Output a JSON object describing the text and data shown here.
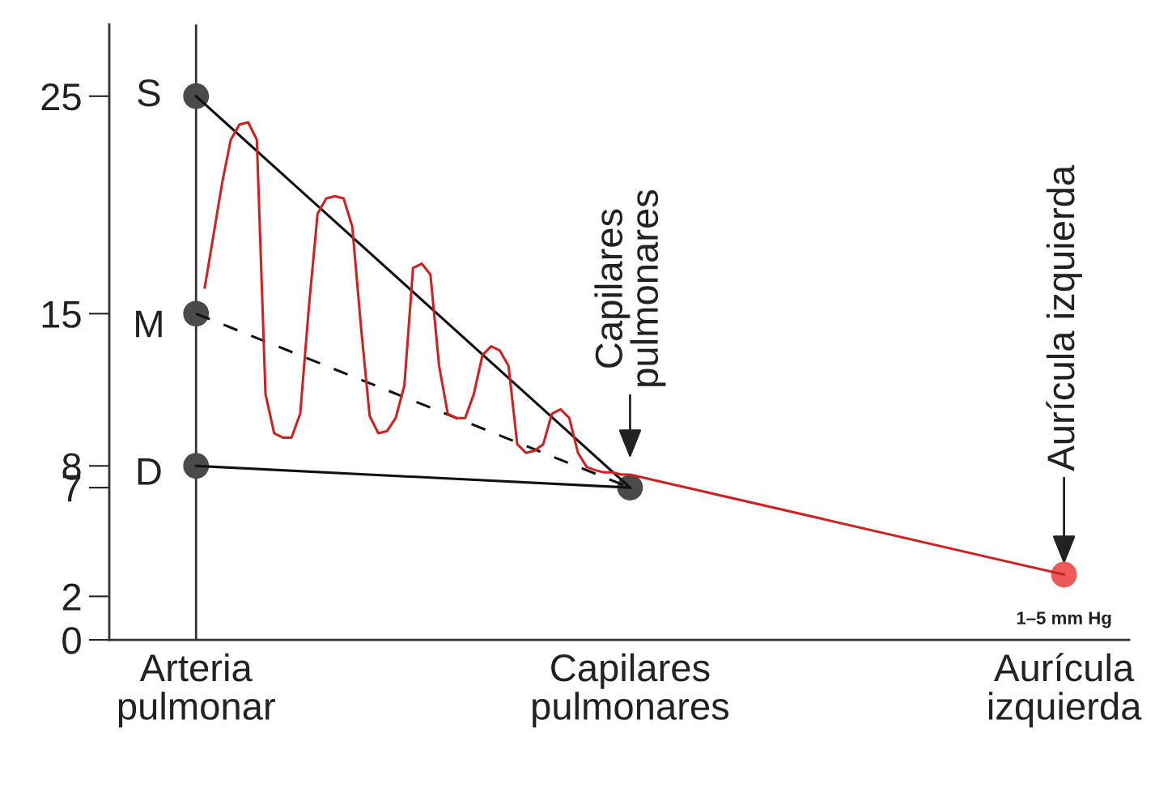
{
  "chart_data": {
    "type": "line",
    "categories": [
      "Arteria\npulmonar",
      null,
      null,
      null,
      null,
      null,
      null,
      null,
      null,
      null,
      null,
      null,
      null,
      null,
      null,
      null,
      null,
      null,
      null,
      null,
      null,
      null,
      null,
      null,
      null,
      null,
      null,
      null,
      null,
      null,
      null,
      null,
      null,
      null,
      null,
      null,
      null,
      null,
      null,
      null,
      null,
      null,
      null,
      null,
      null,
      null,
      null,
      null,
      null,
      null,
      "Capilares\npulmonares",
      null,
      null,
      null,
      null,
      null,
      null,
      null,
      null,
      null,
      null,
      null,
      null,
      null,
      null,
      null,
      null,
      null,
      null,
      null,
      null,
      null,
      null,
      null,
      null,
      null,
      null,
      null,
      null,
      null,
      null,
      null,
      null,
      null,
      null,
      null,
      null,
      null,
      null,
      null,
      null,
      null,
      null,
      null,
      null,
      null,
      null,
      null,
      null,
      null,
      "Aurícula\nizquierda"
    ],
    "ylim": [
      0,
      28.3
    ],
    "yticks": [
      0,
      2,
      7,
      8,
      15,
      25
    ],
    "grid": false,
    "legend": false,
    "series": [
      {
        "values": [
          25,
          null,
          null,
          null,
          null,
          null,
          null,
          null,
          null,
          null,
          null,
          null,
          null,
          null,
          null,
          null,
          null,
          null,
          null,
          null,
          null,
          null,
          null,
          null,
          null,
          null,
          null,
          null,
          null,
          null,
          null,
          null,
          null,
          null,
          null,
          null,
          null,
          null,
          null,
          null,
          null,
          null,
          null,
          null,
          null,
          null,
          null,
          null,
          null,
          null,
          7,
          null,
          null,
          null,
          null,
          null,
          null,
          null,
          null,
          null,
          null,
          null,
          null,
          null,
          null,
          null,
          null,
          null,
          null,
          null,
          null,
          null,
          null,
          null,
          null,
          null,
          null,
          null,
          null,
          null,
          null,
          null,
          null,
          null,
          null,
          null,
          null,
          null,
          null,
          null,
          null,
          null,
          null,
          null,
          null,
          null,
          null,
          null,
          null,
          null,
          null
        ],
        "color": "#111111",
        "marker": "none",
        "line_style": "solid"
      },
      {
        "values": [
          15,
          null,
          null,
          null,
          null,
          null,
          null,
          null,
          null,
          null,
          null,
          null,
          null,
          null,
          null,
          null,
          null,
          null,
          null,
          null,
          null,
          null,
          null,
          null,
          null,
          null,
          null,
          null,
          null,
          null,
          null,
          null,
          null,
          null,
          null,
          null,
          null,
          null,
          null,
          null,
          null,
          null,
          null,
          null,
          null,
          null,
          null,
          null,
          null,
          null,
          7,
          null,
          null,
          null,
          null,
          null,
          null,
          null,
          null,
          null,
          null,
          null,
          null,
          null,
          null,
          null,
          null,
          null,
          null,
          null,
          null,
          null,
          null,
          null,
          null,
          null,
          null,
          null,
          null,
          null,
          null,
          null,
          null,
          null,
          null,
          null,
          null,
          null,
          null,
          null,
          null,
          null,
          null,
          null,
          null,
          null,
          null,
          null,
          null,
          null,
          null
        ],
        "color": "#111111",
        "marker": "none",
        "line_style": "dashed"
      },
      {
        "values": [
          8,
          null,
          null,
          null,
          null,
          null,
          null,
          null,
          null,
          null,
          null,
          null,
          null,
          null,
          null,
          null,
          null,
          null,
          null,
          null,
          null,
          null,
          null,
          null,
          null,
          null,
          null,
          null,
          null,
          null,
          null,
          null,
          null,
          null,
          null,
          null,
          null,
          null,
          null,
          null,
          null,
          null,
          null,
          null,
          null,
          null,
          null,
          null,
          null,
          null,
          7,
          null,
          null,
          null,
          null,
          null,
          null,
          null,
          null,
          null,
          null,
          null,
          null,
          null,
          null,
          null,
          null,
          null,
          null,
          null,
          null,
          null,
          null,
          null,
          null,
          null,
          null,
          null,
          null,
          null,
          null,
          null,
          null,
          null,
          null,
          null,
          null,
          null,
          null,
          null,
          null,
          null,
          null,
          null,
          null,
          null,
          null,
          null,
          null,
          null,
          null
        ],
        "color": "#111111",
        "marker": "none",
        "line_style": "solid"
      },
      {
        "values": [
          null,
          16.2,
          18.6,
          21.0,
          23.0,
          23.7,
          23.8,
          23.0,
          11.3,
          9.5,
          9.3,
          9.3,
          10.4,
          15.3,
          19.6,
          20.3,
          20.4,
          20.3,
          19.0,
          14.4,
          10.3,
          9.5,
          9.6,
          10.2,
          11.7,
          17.1,
          17.3,
          16.8,
          12.6,
          10.4,
          10.2,
          10.2,
          11.3,
          13.1,
          13.5,
          13.3,
          12.6,
          9.0,
          8.6,
          8.7,
          9.0,
          10.4,
          10.6,
          10.2,
          8.6,
          7.95,
          7.8,
          7.7,
          7.7,
          7.6,
          7.6,
          null,
          null,
          null,
          null,
          null,
          null,
          null,
          null,
          null,
          null,
          null,
          null,
          null,
          null,
          null,
          null,
          null,
          null,
          null,
          null,
          null,
          null,
          null,
          null,
          null,
          null,
          null,
          null,
          null,
          null,
          null,
          null,
          null,
          null,
          null,
          null,
          null,
          null,
          null,
          null,
          null,
          null,
          null,
          null,
          null,
          null,
          null,
          null,
          null,
          3
        ],
        "color": "#cc2222",
        "marker": "none",
        "line_style": "solid"
      },
      {
        "type": "scatter",
        "x": [
          "Arteria\npulmonar",
          "Arteria\npulmonar",
          "Arteria\npulmonar",
          "Capilares\npulmonares"
        ],
        "values": [
          25,
          15,
          8,
          7
        ],
        "color": "#4a4a4a",
        "marker": "circle"
      },
      {
        "type": "scatter",
        "values": [
          null,
          null,
          null,
          null,
          null,
          null,
          null,
          null,
          null,
          null,
          null,
          null,
          null,
          null,
          null,
          null,
          null,
          null,
          null,
          null,
          null,
          null,
          null,
          null,
          null,
          null,
          null,
          null,
          null,
          null,
          null,
          null,
          null,
          null,
          null,
          null,
          null,
          null,
          null,
          null,
          null,
          null,
          null,
          null,
          null,
          null,
          null,
          null,
          null,
          null,
          null,
          null,
          null,
          null,
          null,
          null,
          null,
          null,
          null,
          null,
          null,
          null,
          null,
          null,
          null,
          null,
          null,
          null,
          null,
          null,
          null,
          null,
          null,
          null,
          null,
          null,
          null,
          null,
          null,
          null,
          null,
          null,
          null,
          null,
          null,
          null,
          null,
          null,
          null,
          null,
          null,
          null,
          null,
          null,
          null,
          null,
          null,
          null,
          null,
          null,
          3
        ],
        "color": "#ec5a5a",
        "marker": "circle"
      }
    ],
    "annotations": [
      {
        "text": "S",
        "x": "Arteria\npulmonar",
        "y": 25
      },
      {
        "text": "M",
        "x": "Arteria\npulmonar",
        "y": 15
      },
      {
        "text": "D",
        "x": "Arteria\npulmonar",
        "y": 8
      },
      {
        "text": "Capilares\npulmonares",
        "x": "Capilares\npulmonares",
        "y": 7
      },
      {
        "text": "Aurícula izquierda",
        "x": "Aurícula\nizquierda",
        "y": 3
      },
      {
        "text": "1–5 mm Hg",
        "x": "Aurícula\nizquierda",
        "y": 3
      }
    ]
  }
}
